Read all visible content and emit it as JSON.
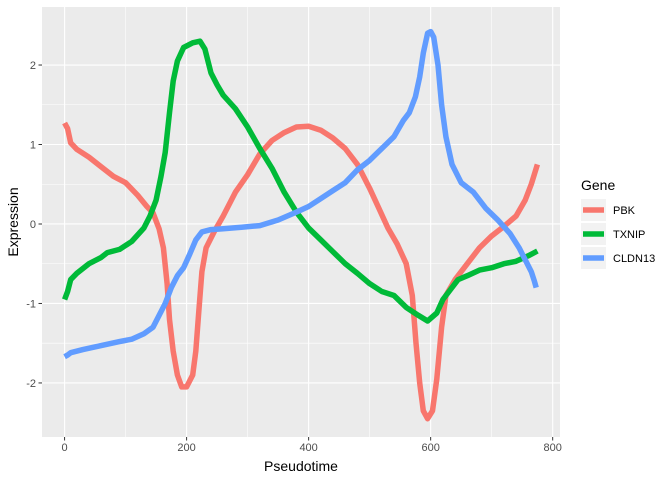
{
  "chart_data": {
    "type": "line",
    "xlabel": "Pseudotime",
    "ylabel": "Expression",
    "xlim": [
      -37,
      812
    ],
    "ylim": [
      -2.68,
      2.73
    ],
    "x_ticks": [
      0,
      200,
      400,
      600,
      800
    ],
    "y_ticks": [
      -2,
      -1,
      0,
      1,
      2
    ],
    "x_tick_labels": [
      "0",
      "200",
      "400",
      "600",
      "800"
    ],
    "y_tick_labels": [
      "-2",
      "-1",
      "0",
      "1",
      "2"
    ],
    "grid": true,
    "legend": {
      "title": "Gene",
      "position": "right"
    },
    "series": [
      {
        "name": "PBK",
        "color": "#F8766D",
        "points": [
          [
            0,
            1.27
          ],
          [
            5,
            1.2
          ],
          [
            10,
            1.02
          ],
          [
            20,
            0.94
          ],
          [
            40,
            0.84
          ],
          [
            60,
            0.72
          ],
          [
            80,
            0.6
          ],
          [
            100,
            0.52
          ],
          [
            120,
            0.36
          ],
          [
            135,
            0.22
          ],
          [
            145,
            0.14
          ],
          [
            155,
            -0.06
          ],
          [
            162,
            -0.3
          ],
          [
            168,
            -0.75
          ],
          [
            172,
            -1.2
          ],
          [
            178,
            -1.6
          ],
          [
            185,
            -1.9
          ],
          [
            192,
            -2.05
          ],
          [
            200,
            -2.05
          ],
          [
            210,
            -1.9
          ],
          [
            215,
            -1.6
          ],
          [
            220,
            -1.1
          ],
          [
            225,
            -0.6
          ],
          [
            232,
            -0.3
          ],
          [
            245,
            -0.1
          ],
          [
            260,
            0.1
          ],
          [
            280,
            0.4
          ],
          [
            300,
            0.62
          ],
          [
            320,
            0.88
          ],
          [
            340,
            1.05
          ],
          [
            360,
            1.15
          ],
          [
            380,
            1.22
          ],
          [
            400,
            1.23
          ],
          [
            420,
            1.18
          ],
          [
            440,
            1.08
          ],
          [
            460,
            0.95
          ],
          [
            480,
            0.75
          ],
          [
            500,
            0.45
          ],
          [
            515,
            0.2
          ],
          [
            530,
            -0.05
          ],
          [
            545,
            -0.25
          ],
          [
            560,
            -0.5
          ],
          [
            570,
            -0.9
          ],
          [
            576,
            -1.5
          ],
          [
            582,
            -2.0
          ],
          [
            588,
            -2.35
          ],
          [
            595,
            -2.45
          ],
          [
            603,
            -2.35
          ],
          [
            610,
            -1.95
          ],
          [
            618,
            -1.3
          ],
          [
            625,
            -0.9
          ],
          [
            640,
            -0.7
          ],
          [
            660,
            -0.5
          ],
          [
            680,
            -0.3
          ],
          [
            700,
            -0.15
          ],
          [
            720,
            -0.03
          ],
          [
            740,
            0.1
          ],
          [
            755,
            0.3
          ],
          [
            765,
            0.5
          ],
          [
            775,
            0.75
          ]
        ]
      },
      {
        "name": "TXNIP",
        "color": "#00BA38",
        "points": [
          [
            0,
            -0.95
          ],
          [
            5,
            -0.85
          ],
          [
            10,
            -0.7
          ],
          [
            20,
            -0.62
          ],
          [
            40,
            -0.5
          ],
          [
            60,
            -0.42
          ],
          [
            70,
            -0.36
          ],
          [
            90,
            -0.32
          ],
          [
            110,
            -0.22
          ],
          [
            130,
            -0.05
          ],
          [
            140,
            0.1
          ],
          [
            150,
            0.3
          ],
          [
            158,
            0.6
          ],
          [
            165,
            0.9
          ],
          [
            172,
            1.4
          ],
          [
            178,
            1.8
          ],
          [
            185,
            2.05
          ],
          [
            195,
            2.22
          ],
          [
            210,
            2.28
          ],
          [
            222,
            2.3
          ],
          [
            230,
            2.2
          ],
          [
            240,
            1.9
          ],
          [
            250,
            1.75
          ],
          [
            260,
            1.62
          ],
          [
            280,
            1.45
          ],
          [
            300,
            1.22
          ],
          [
            320,
            0.95
          ],
          [
            340,
            0.7
          ],
          [
            360,
            0.4
          ],
          [
            380,
            0.15
          ],
          [
            400,
            -0.05
          ],
          [
            420,
            -0.2
          ],
          [
            440,
            -0.35
          ],
          [
            460,
            -0.5
          ],
          [
            480,
            -0.62
          ],
          [
            500,
            -0.75
          ],
          [
            520,
            -0.85
          ],
          [
            540,
            -0.9
          ],
          [
            560,
            -1.05
          ],
          [
            580,
            -1.15
          ],
          [
            595,
            -1.22
          ],
          [
            610,
            -1.12
          ],
          [
            620,
            -0.95
          ],
          [
            630,
            -0.85
          ],
          [
            645,
            -0.7
          ],
          [
            660,
            -0.65
          ],
          [
            680,
            -0.58
          ],
          [
            700,
            -0.55
          ],
          [
            720,
            -0.5
          ],
          [
            740,
            -0.47
          ],
          [
            760,
            -0.4
          ],
          [
            775,
            -0.34
          ]
        ]
      },
      {
        "name": "CLDN13",
        "color": "#619CFF",
        "points": [
          [
            0,
            -1.67
          ],
          [
            5,
            -1.65
          ],
          [
            10,
            -1.62
          ],
          [
            30,
            -1.58
          ],
          [
            60,
            -1.53
          ],
          [
            90,
            -1.48
          ],
          [
            110,
            -1.45
          ],
          [
            130,
            -1.38
          ],
          [
            145,
            -1.3
          ],
          [
            155,
            -1.15
          ],
          [
            165,
            -1.0
          ],
          [
            175,
            -0.8
          ],
          [
            185,
            -0.65
          ],
          [
            195,
            -0.55
          ],
          [
            205,
            -0.38
          ],
          [
            215,
            -0.2
          ],
          [
            225,
            -0.1
          ],
          [
            240,
            -0.07
          ],
          [
            260,
            -0.06
          ],
          [
            290,
            -0.04
          ],
          [
            320,
            -0.02
          ],
          [
            350,
            0.05
          ],
          [
            380,
            0.15
          ],
          [
            400,
            0.22
          ],
          [
            420,
            0.32
          ],
          [
            440,
            0.42
          ],
          [
            460,
            0.52
          ],
          [
            480,
            0.68
          ],
          [
            500,
            0.8
          ],
          [
            520,
            0.95
          ],
          [
            540,
            1.1
          ],
          [
            555,
            1.3
          ],
          [
            565,
            1.4
          ],
          [
            575,
            1.6
          ],
          [
            582,
            1.85
          ],
          [
            588,
            2.15
          ],
          [
            595,
            2.4
          ],
          [
            600,
            2.42
          ],
          [
            605,
            2.35
          ],
          [
            612,
            2.0
          ],
          [
            618,
            1.5
          ],
          [
            625,
            1.1
          ],
          [
            635,
            0.75
          ],
          [
            650,
            0.52
          ],
          [
            670,
            0.4
          ],
          [
            690,
            0.2
          ],
          [
            710,
            0.05
          ],
          [
            730,
            -0.12
          ],
          [
            745,
            -0.3
          ],
          [
            755,
            -0.45
          ],
          [
            765,
            -0.6
          ],
          [
            770,
            -0.72
          ],
          [
            773,
            -0.8
          ]
        ]
      }
    ]
  }
}
